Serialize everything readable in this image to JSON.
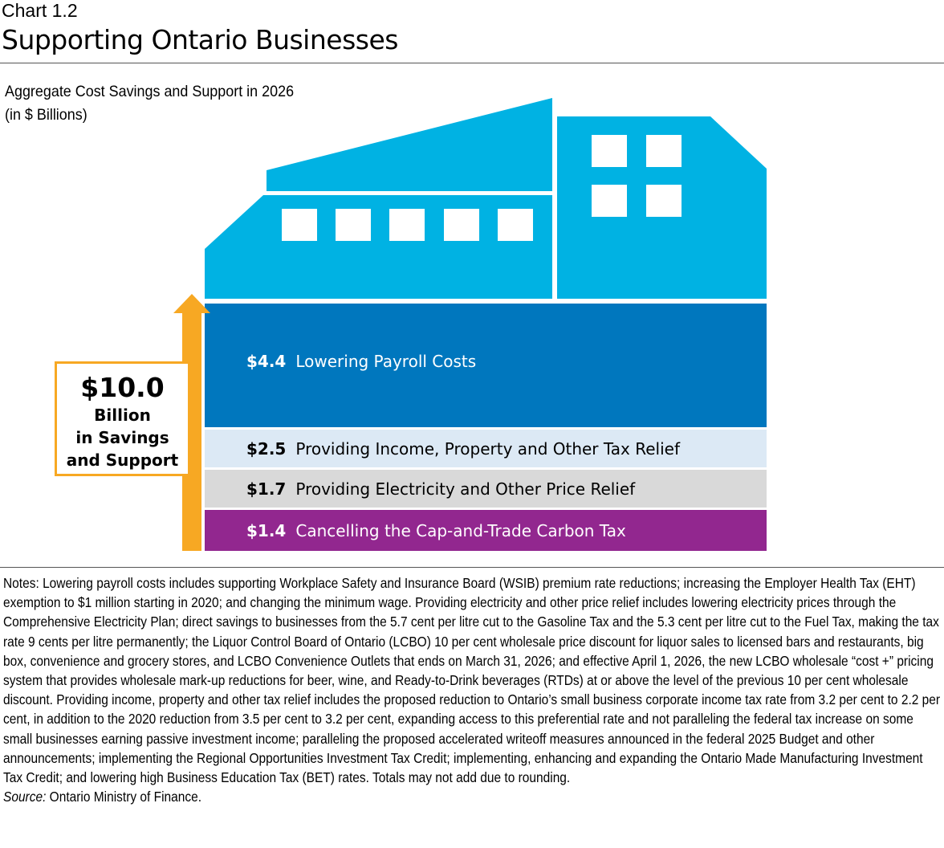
{
  "header": {
    "chart_number": "Chart 1.2",
    "title": "Supporting Ontario Businesses"
  },
  "chart_data": {
    "type": "bar",
    "subtype": "stacked-infographic",
    "title": "Aggregate Cost Savings and Support in 2026",
    "unit": "(in $ Billions)",
    "categories": [
      "Lowering Payroll Costs",
      "Providing Income, Property and Other Tax Relief",
      "Providing Electricity and Other Price Relief",
      "Cancelling the Cap-and-Trade Carbon Tax"
    ],
    "values": [
      4.4,
      2.5,
      1.7,
      1.4
    ],
    "value_labels": [
      "$4.4",
      "$2.5",
      "$1.7",
      "$1.4"
    ],
    "colors": [
      "#0077BE",
      "#DCE9F5",
      "#D9D9D9",
      "#92278F"
    ],
    "total": {
      "value": "$10.0",
      "lines": [
        "Billion",
        "in Savings",
        "and Support"
      ]
    },
    "building_color": "#00B2E3",
    "arrow_color": "#F7A823"
  },
  "notes": {
    "text": "Notes: Lowering payroll costs includes supporting Workplace Safety and Insurance Board (WSIB) premium rate reductions; increasing the Employer Health Tax (EHT) exemption to $1 million starting in 2020; and changing the minimum wage. Providing electricity and other price relief includes lowering electricity prices through the Comprehensive Electricity Plan; direct savings to businesses from the 5.7 cent per litre cut to the Gasoline Tax and the 5.3 cent per litre cut to the Fuel Tax, making the tax rate 9 cents per litre permanently; the Liquor Control Board of Ontario (LCBO) 10 per cent wholesale price discount for liquor sales to licensed bars and restaurants, big box, convenience and grocery stores, and LCBO Convenience Outlets that ends on March 31, 2026; and effective April 1, 2026, the new LCBO wholesale “cost +” pricing system that provides wholesale mark-up reductions for beer, wine, and Ready-to-Drink beverages (RTDs) at or above the level of the previous 10 per cent wholesale discount. Providing income, property and other tax relief includes the proposed reduction to Ontario’s small business corporate income tax rate from 3.2 per cent to 2.2 per cent, in addition to the 2020 reduction from 3.5 per cent to 3.2 per cent, expanding access to this preferential rate and not paralleling the federal tax increase on some small businesses earning passive investment income; paralleling the proposed accelerated writeoff measures announced in the federal 2025 Budget and other announcements; implementing the Regional Opportunities Investment Tax Credit; implementing, enhancing and expanding the Ontario Made Manufacturing Investment Tax Credit; and lowering high Business Education Tax (BET) rates. Totals may not add due to rounding.",
    "source_label": "Source:",
    "source_text": " Ontario Ministry of Finance."
  }
}
